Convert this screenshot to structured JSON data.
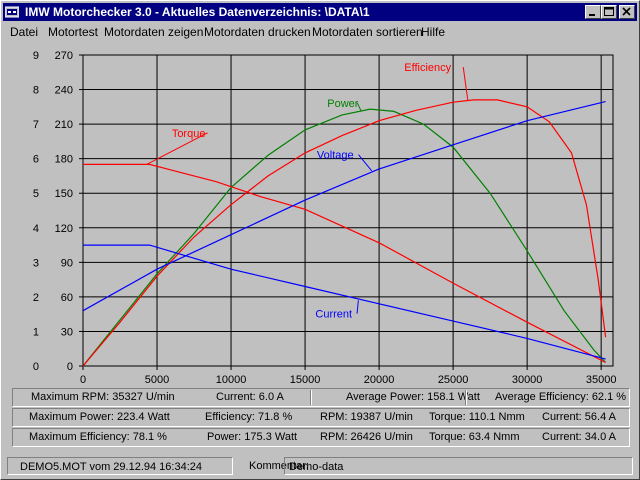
{
  "window": {
    "title": "IMW Motorchecker 3.0 - Aktuelles Datenverzeichnis: \\DATA\\1"
  },
  "menu": [
    {
      "label": "Datei"
    },
    {
      "label": "Motortest"
    },
    {
      "label": "Motordaten zeigen"
    },
    {
      "label": "Motordaten drucken"
    },
    {
      "label": "Motordaten sortieren"
    },
    {
      "label": "Hilfe"
    }
  ],
  "colors": {
    "power": "#008000",
    "efficiency": "#ff0000",
    "torque": "#ff0000",
    "voltage": "#0000ff",
    "current": "#0000ff",
    "grid": "#000000",
    "plot_bg": "#c0c0c0",
    "titlebar": "#000080"
  },
  "chart_data": {
    "type": "line",
    "x_ticks": [
      0,
      5000,
      10000,
      15000,
      20000,
      25000,
      30000,
      35000
    ],
    "xlim": [
      0,
      35800
    ],
    "left_ticks": [
      0,
      1,
      2,
      3,
      4,
      5,
      6,
      7,
      8,
      9
    ],
    "left_ylim": [
      0,
      9
    ],
    "right_ticks": [
      0,
      30,
      60,
      90,
      120,
      150,
      180,
      210,
      240,
      270
    ],
    "right_ylim": [
      0,
      270
    ],
    "grid": true,
    "series": [
      {
        "name": "Power",
        "key": "power",
        "x": [
          0,
          2500,
          5000,
          7500,
          10000,
          12500,
          15000,
          17500,
          19400,
          21000,
          23000,
          25000,
          27500,
          30000,
          32500,
          34500,
          35300
        ],
        "y": [
          0,
          40,
          80,
          115,
          155,
          183,
          205,
          218,
          223,
          221,
          210,
          190,
          150,
          100,
          48,
          14,
          3
        ]
      },
      {
        "name": "Efficiency",
        "key": "efficiency",
        "x": [
          0,
          2500,
          5000,
          7500,
          10000,
          12500,
          15000,
          17500,
          20000,
          22500,
          25000,
          26400,
          28000,
          30000,
          31500,
          33000,
          34000,
          34800,
          35300
        ],
        "y": [
          0,
          38,
          78,
          112,
          140,
          165,
          185,
          200,
          213,
          222,
          229,
          231,
          231,
          225,
          212,
          185,
          140,
          75,
          25
        ]
      },
      {
        "name": "Torque",
        "key": "torque",
        "x": [
          0,
          4500,
          6000,
          9000,
          12000,
          15000,
          20000,
          25000,
          30000,
          35300
        ],
        "y": [
          175,
          175,
          170,
          160,
          147,
          136,
          107,
          72,
          38,
          3
        ]
      },
      {
        "name": "Voltage",
        "key": "voltage",
        "x": [
          0,
          5000,
          10000,
          15000,
          20000,
          25000,
          30000,
          35300
        ],
        "y": [
          1.6,
          2.8,
          3.8,
          4.8,
          5.7,
          6.4,
          7.1,
          7.65
        ]
      },
      {
        "name": "Current",
        "key": "current",
        "x": [
          0,
          4500,
          10000,
          15000,
          20000,
          25000,
          30000,
          35300
        ],
        "y": [
          3.5,
          3.5,
          2.8,
          2.3,
          1.8,
          1.3,
          0.8,
          0.2
        ]
      }
    ],
    "labels": [
      {
        "text": "Power",
        "key": "power"
      },
      {
        "text": "Efficiency",
        "key": "efficiency"
      },
      {
        "text": "Torque",
        "key": "torque"
      },
      {
        "text": "Voltage",
        "key": "voltage"
      },
      {
        "text": "Current",
        "key": "current"
      }
    ]
  },
  "stats": {
    "row1": {
      "max_rpm": "Maximum RPM: 35327 U/min",
      "current": "Current: 6.0 A",
      "avg_power": "Average Power: 158.1 Watt",
      "avg_eff": "Average Efficiency: 62.1 %"
    },
    "row2": {
      "label": "Maximum Power: 223.4 Watt",
      "efficiency": "Efficiency: 71.8 %",
      "rpm": "RPM: 19387 U/min",
      "torque": "Torque: 110.1 Nmm",
      "current": "Current: 56.4 A"
    },
    "row3": {
      "label": "Maximum Efficiency: 78.1 %",
      "power": "Power: 175.3 Watt",
      "rpm": "RPM: 26426 U/min",
      "torque": "Torque: 63.4 Nmm",
      "current": "Current: 34.0 A"
    }
  },
  "statusbar": {
    "file": "DEMO5.MOT vom 29.12.94 16:34:24",
    "comment_label": "Kommentar:",
    "comment": "Demo-data"
  }
}
